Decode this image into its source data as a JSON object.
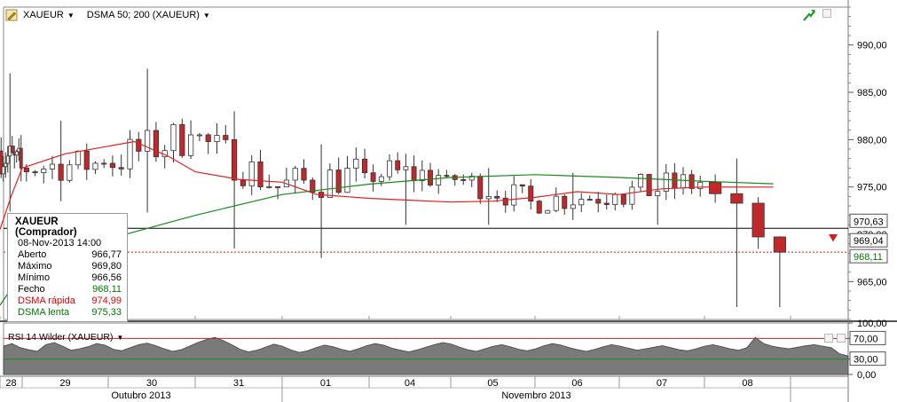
{
  "toolbar": {
    "symbol": "XAUEUR",
    "indicator": "DSMA 50; 200 (XAUEUR)"
  },
  "info": {
    "title": "XAUEUR (Comprador)",
    "datetime": "08-Nov-2013 14:00",
    "rows": [
      {
        "label": "Aberto",
        "value": "966,77",
        "color": "#000000"
      },
      {
        "label": "Máximo",
        "value": "969,80",
        "color": "#000000"
      },
      {
        "label": "Mínimo",
        "value": "966,56",
        "color": "#000000"
      },
      {
        "label": "Fecho",
        "value": "968,11",
        "color": "#007a00"
      },
      {
        "label": "DSMA rápida",
        "value": "974,99",
        "color": "#e00000"
      },
      {
        "label": "DSMA lenta",
        "value": "975,33",
        "color": "#007a00"
      }
    ]
  },
  "rsi": {
    "label": "RSI 14 Wilder (XAUEUR)"
  },
  "colors": {
    "up": "#ffffff",
    "down": "#c0282c",
    "wick": "#333333",
    "fast_ma": "#e02020",
    "slow_ma": "#1a8a1a",
    "grid": "#cfcfcf"
  },
  "chart_data": [
    {
      "type": "candlestick",
      "symbol": "XAUEUR",
      "y_ticks": [
        965,
        970,
        975,
        980,
        985,
        990
      ],
      "y_tick_labels": [
        "965,00",
        "970,00",
        "975,00",
        "980,00",
        "985,00",
        "990,00"
      ],
      "ylim": [
        961,
        994
      ],
      "x_day_labels": [
        "28",
        "29",
        "30",
        "31",
        "01",
        "04",
        "05",
        "06",
        "07",
        "08"
      ],
      "x_month_labels": [
        "Outubro 2013",
        "Novembro 2013"
      ],
      "x_month_spans": [
        [
          0,
          4
        ],
        [
          4,
          10
        ]
      ],
      "price_labels": [
        {
          "value": 970.63,
          "text": "970,63",
          "color": "#000000"
        },
        {
          "value": 969.04,
          "text": "969,04",
          "color": "#000000"
        },
        {
          "value": 968.11,
          "text": "968,11",
          "color": "#007a00"
        }
      ],
      "ref_lines": [
        970.63,
        968.11
      ],
      "day_levels": [
        {
          "start": 978.8,
          "end": 977.0,
          "hi": 987,
          "lo": 972.4,
          "vol": 1.4
        },
        {
          "start": 977.0,
          "end": 977.5,
          "hi": 982,
          "lo": 973.5,
          "vol": 1.1
        },
        {
          "start": 977.5,
          "end": 980.5,
          "hi": 987.5,
          "lo": 972.3,
          "vol": 1.4
        },
        {
          "start": 980.5,
          "end": 975.0,
          "hi": 983,
          "lo": 968.5,
          "vol": 1.3
        },
        {
          "start": 975.0,
          "end": 976.5,
          "hi": 979.5,
          "lo": 967.5,
          "vol": 1.3
        },
        {
          "start": 976.5,
          "end": 976.2,
          "hi": 978.5,
          "lo": 971.0,
          "vol": 1.1
        },
        {
          "start": 976.2,
          "end": 973.5,
          "hi": 977.0,
          "lo": 971.0,
          "vol": 0.9
        },
        {
          "start": 973.5,
          "end": 974.2,
          "hi": 976.5,
          "lo": 971.5,
          "vol": 0.9
        },
        {
          "start": 974.2,
          "end": 975.5,
          "hi": 991.5,
          "lo": 971.0,
          "vol": 1.1
        },
        {
          "start": 975.5,
          "end": 968.11,
          "hi": 978.0,
          "lo": 962.3,
          "vol": 1.2
        }
      ],
      "dsma_fast": [
        [
          0,
          970.5
        ],
        [
          0.5,
          974.0
        ],
        [
          1,
          977.0
        ],
        [
          1.5,
          978.5
        ],
        [
          2,
          979.3
        ],
        [
          2.3,
          979.8
        ],
        [
          2.7,
          978.2
        ],
        [
          3,
          976.6
        ],
        [
          3.5,
          975.8
        ],
        [
          4,
          975.5
        ],
        [
          4.4,
          974.2
        ],
        [
          5,
          973.8
        ],
        [
          5.5,
          973.6
        ],
        [
          6,
          973.4
        ],
        [
          6.5,
          973.5
        ],
        [
          7,
          973.9
        ],
        [
          7.5,
          974.5
        ],
        [
          8,
          974.2
        ],
        [
          8.5,
          974.8
        ],
        [
          9,
          975.0
        ],
        [
          9.8,
          974.99
        ]
      ],
      "dsma_slow": [
        [
          0,
          962.5
        ],
        [
          1,
          966.0
        ],
        [
          2,
          969.5
        ],
        [
          3,
          972.0
        ],
        [
          4,
          974.2
        ],
        [
          5,
          975.3
        ],
        [
          6,
          976.0
        ],
        [
          7,
          976.3
        ],
        [
          8,
          976.0
        ],
        [
          9,
          975.6
        ],
        [
          9.8,
          975.33
        ]
      ]
    },
    {
      "type": "line",
      "name": "RSI 14 Wilder (XAUEUR)",
      "y_ticks": [
        0,
        30,
        70,
        100
      ],
      "y_tick_labels": [
        "0,00",
        "30,00",
        "70,00",
        "100,00"
      ],
      "boxed_ticks": [
        30,
        70
      ],
      "ylim": [
        0,
        100
      ],
      "levels": [
        30,
        70
      ],
      "values": [
        55,
        60,
        52,
        48,
        45,
        58,
        62,
        55,
        47,
        50,
        54,
        60,
        57,
        49,
        46,
        52,
        58,
        61,
        56,
        50,
        45,
        48,
        55,
        62,
        68,
        72,
        66,
        58,
        49,
        44,
        47,
        53,
        59,
        55,
        48,
        43,
        46,
        52,
        57,
        54,
        49,
        45,
        50,
        56,
        60,
        57,
        51,
        47,
        44,
        48,
        53,
        58,
        62,
        59,
        53,
        48,
        45,
        50,
        55,
        58,
        54,
        49,
        46,
        50,
        56,
        60,
        57,
        52,
        48,
        45,
        49,
        54,
        58,
        55,
        51,
        47,
        50,
        53,
        56,
        52,
        48,
        46,
        50,
        55,
        58,
        54,
        50,
        47,
        52,
        72,
        60,
        55,
        52,
        50,
        53,
        56,
        58,
        55,
        52,
        40,
        36
      ]
    }
  ]
}
